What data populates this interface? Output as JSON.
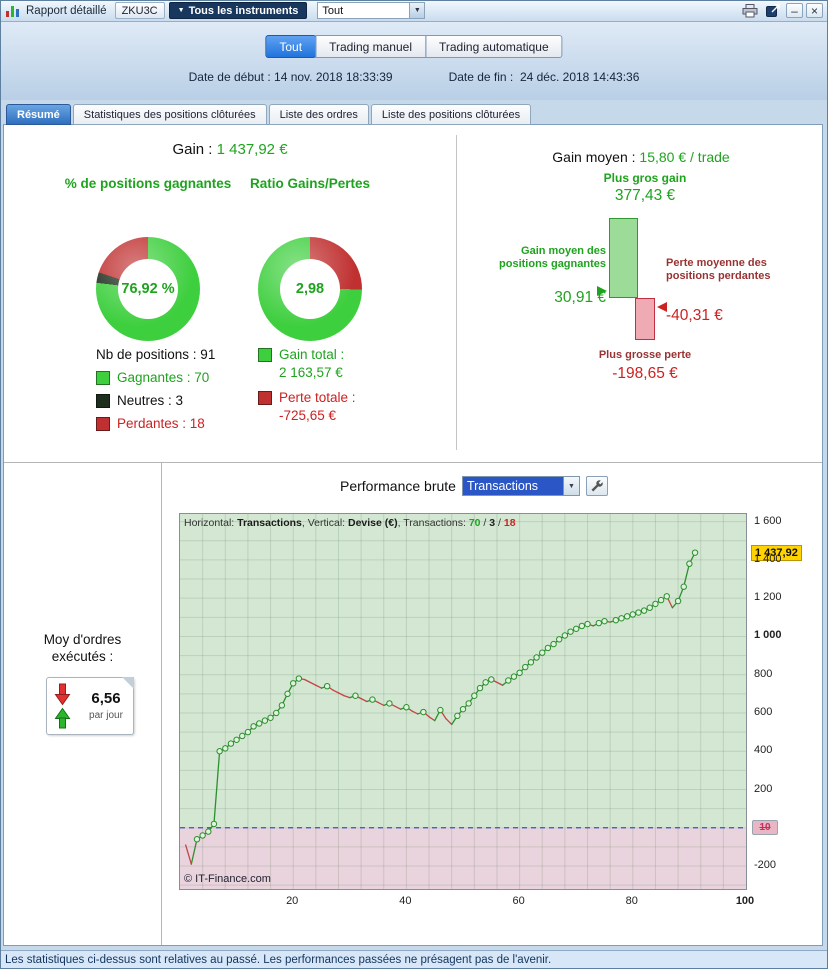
{
  "icons": {
    "chevron_down": "▼",
    "instrument_chevron": "▼",
    "minimize": "–",
    "close": "×"
  },
  "titlebar": {
    "title": "Rapport détaillé",
    "code_button": "ZKU3C",
    "instruments_button": "Tous les instruments",
    "filter_value": "Tout"
  },
  "scope_tabs": [
    {
      "label": "Tout"
    },
    {
      "label": "Trading manuel"
    },
    {
      "label": "Trading automatique"
    }
  ],
  "dates": {
    "start_label": "Date de début :",
    "start_value": "14 nov. 2018 18:33:39",
    "end_label": "Date de fin :",
    "end_value": "24 déc. 2018 14:43:36"
  },
  "report_tabs": [
    {
      "label": "Résumé"
    },
    {
      "label": "Statistiques des positions clôturées"
    },
    {
      "label": "Liste des ordres"
    },
    {
      "label": "Liste des positions clôturées"
    }
  ],
  "summary": {
    "gain_label": "Gain : ",
    "gain_value": "1 437,92 €",
    "winpct_title": "% de positions gagnantes",
    "winpct_value": "76,92 %",
    "ratio_title": "Ratio Gains/Pertes",
    "ratio_value": "2,98",
    "positions_label": "Nb de positions : 91",
    "legend": [
      {
        "label": "Gagnantes : 70",
        "color": "#3ecf3e"
      },
      {
        "label": "Neutres : 3",
        "color": "#1e2e1e"
      },
      {
        "label": "Perdantes : 18",
        "color": "#c03030"
      }
    ],
    "donut1": {
      "green": 76.92,
      "dark": 3.3,
      "red": 19.78
    },
    "donut2": {
      "red": 25.1,
      "green": 74.9
    },
    "gain_total_label": "Gain total :",
    "gain_total_value": "2 163,57 €",
    "loss_total_label": "Perte totale :",
    "loss_total_value": "-725,65 €"
  },
  "average": {
    "title_label": "Gain moyen : ",
    "title_value": "15,80 € / trade",
    "max_gain_label": "Plus gros gain",
    "max_gain_value": "377,43 €",
    "max_gain": 377.43,
    "avg_gain_label": "Gain moyen des positions gagnantes",
    "avg_gain_value": "30,91 €",
    "avg_gain": 30.91,
    "avg_loss_label": "Perte moyenne des positions perdantes",
    "avg_loss_value": "-40,31 €",
    "avg_loss": -40.31,
    "max_loss_label": "Plus grosse perte",
    "max_loss_value": "-198,65 €",
    "max_loss": -198.65
  },
  "performance": {
    "title": "Performance brute",
    "select_value": "Transactions",
    "orders_label_line1": "Moy d'ordres",
    "orders_label_line2": "exécutés :",
    "orders_value": "6,56",
    "orders_unit": "par jour"
  },
  "chart_data": {
    "type": "line",
    "title": "Performance brute",
    "xlabel": "Transactions",
    "ylabel": "Devise (€)",
    "legend": {
      "h_label": "Horizontal: ",
      "h_value": "Transactions",
      "v_label": ", Vertical: ",
      "v_value": "Devise (€)",
      "t_label": ", Transactions: ",
      "wins": "70",
      "sep": " / ",
      "neutral": "3",
      "losses": "18"
    },
    "xlim": [
      0,
      100
    ],
    "ylim": [
      -320,
      1640
    ],
    "grid": true,
    "legend_position": "top-left-inside",
    "x_ticks": [
      {
        "v": 20,
        "label": "20"
      },
      {
        "v": 40,
        "label": "40"
      },
      {
        "v": 60,
        "label": "60"
      },
      {
        "v": 80,
        "label": "80"
      },
      {
        "v": 100,
        "label": "100",
        "bold": true
      }
    ],
    "y_ticks": [
      {
        "v": 1600,
        "label": "1 600"
      },
      {
        "v": 1400,
        "label": "1 400"
      },
      {
        "v": 1200,
        "label": "1 200"
      },
      {
        "v": 1000,
        "label": "1 000",
        "bold": true
      },
      {
        "v": 800,
        "label": "800"
      },
      {
        "v": 600,
        "label": "600"
      },
      {
        "v": 400,
        "label": "400"
      },
      {
        "v": 200,
        "label": "200"
      },
      {
        "v": -200,
        "label": "-200"
      }
    ],
    "current_value": 1437.92,
    "current_value_label": "1 437,92",
    "axis_box_label": "10",
    "watermark": "© IT-Finance.com",
    "colors": {
      "win": "#2d8f2d",
      "loss": "#c44545",
      "bg_positive": "#d3e7d3",
      "bg_negative": "#e9d3dc",
      "zero_line": "#3355bb",
      "tag_bg": "#ffd200"
    },
    "equity": [
      -90,
      -190,
      -60,
      -40,
      -20,
      20,
      400,
      415,
      440,
      460,
      480,
      500,
      530,
      545,
      560,
      575,
      600,
      640,
      700,
      755,
      780,
      775,
      760,
      745,
      730,
      740,
      720,
      705,
      690,
      680,
      690,
      675,
      660,
      670,
      655,
      640,
      650,
      635,
      620,
      630,
      610,
      595,
      605,
      580,
      560,
      615,
      570,
      540,
      585,
      620,
      650,
      690,
      730,
      760,
      775,
      760,
      745,
      770,
      790,
      810,
      840,
      865,
      890,
      915,
      940,
      960,
      985,
      1005,
      1025,
      1040,
      1055,
      1065,
      1055,
      1070,
      1080,
      1075,
      1085,
      1095,
      1105,
      1115,
      1125,
      1135,
      1150,
      1170,
      1190,
      1210,
      1150,
      1185,
      1260,
      1380,
      1437.92
    ]
  },
  "statusbar": "Les statistiques ci-dessus sont relatives au passé. Les performances passées ne présagent pas de l'avenir."
}
